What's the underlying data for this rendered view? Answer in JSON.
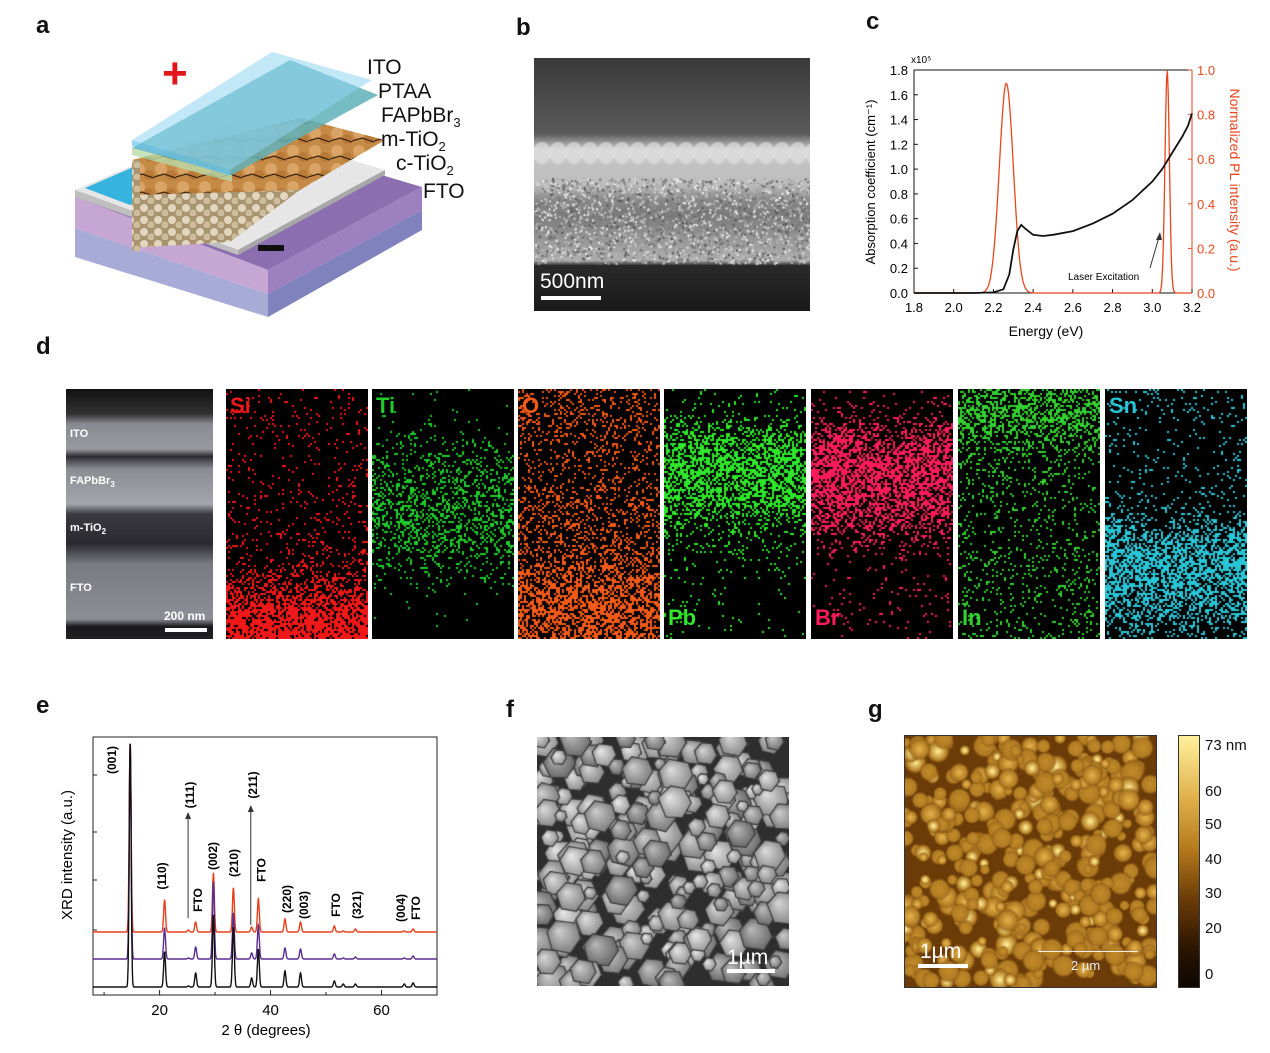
{
  "panel_labels": {
    "a": "a",
    "b": "b",
    "c": "c",
    "d": "d",
    "e": "e",
    "f": "f",
    "g": "g"
  },
  "panel_a": {
    "plus_sign": "+",
    "layers": [
      {
        "main": "ITO",
        "sub": ""
      },
      {
        "main": "PTAA",
        "sub": ""
      },
      {
        "main": "FAPbBr",
        "sub": "3"
      },
      {
        "main": "m-TiO",
        "sub": "2"
      },
      {
        "main": "c-TiO",
        "sub": "2"
      },
      {
        "main": "FTO",
        "sub": ""
      }
    ]
  },
  "panel_b": {
    "scale_bar": "500nm"
  },
  "panel_d": {
    "tem_labels": [
      {
        "main": "ITO",
        "sub": ""
      },
      {
        "main": "FAPbBr",
        "sub": "3"
      },
      {
        "main": "m-TiO",
        "sub": "2"
      },
      {
        "main": "FTO",
        "sub": ""
      }
    ],
    "scale_bar": "200 nm",
    "maps": [
      {
        "element": "Si",
        "color": "#f01818",
        "label_pos": "top",
        "density": [
          0.05,
          0.06,
          0.05,
          0.05,
          0.06,
          0.07,
          0.08,
          0.12,
          0.45,
          0.75,
          0.8
        ]
      },
      {
        "element": "Ti",
        "color": "#1fcc2a",
        "label_pos": "top",
        "density": [
          0.01,
          0.02,
          0.08,
          0.18,
          0.3,
          0.35,
          0.3,
          0.12,
          0.02,
          0.01,
          0.01
        ]
      },
      {
        "element": "O",
        "color": "#f25a18",
        "label_pos": "top",
        "density": [
          0.2,
          0.22,
          0.15,
          0.15,
          0.22,
          0.25,
          0.25,
          0.35,
          0.55,
          0.6,
          0.55
        ]
      },
      {
        "element": "Pb",
        "color": "#2ee62a",
        "label_pos": "bottom",
        "density": [
          0.02,
          0.08,
          0.45,
          0.6,
          0.55,
          0.35,
          0.1,
          0.03,
          0.02,
          0.02,
          0.02
        ]
      },
      {
        "element": "Br",
        "color": "#ff1a5c",
        "label_pos": "bottom",
        "density": [
          0.03,
          0.1,
          0.5,
          0.65,
          0.6,
          0.45,
          0.15,
          0.04,
          0.03,
          0.03,
          0.03
        ]
      },
      {
        "element": "In",
        "color": "#34d030",
        "label_pos": "bottom",
        "density": [
          0.35,
          0.55,
          0.3,
          0.12,
          0.1,
          0.1,
          0.12,
          0.12,
          0.12,
          0.12,
          0.12
        ]
      },
      {
        "element": "Sn",
        "color": "#26c6d6",
        "label_pos": "top",
        "density": [
          0.08,
          0.06,
          0.05,
          0.05,
          0.06,
          0.15,
          0.5,
          0.65,
          0.55,
          0.35,
          0.1
        ]
      }
    ]
  },
  "panel_f": {
    "scale_bar": "1µm"
  },
  "panel_g": {
    "scale_bar": "1µm",
    "scale_bar2": "2 µm",
    "colorbar": {
      "unit_max_label": "73 nm",
      "ticks": [
        "60",
        "50",
        "40",
        "30",
        "20",
        "0"
      ],
      "range_nm": [
        0,
        73
      ]
    }
  },
  "chart_data": [
    {
      "id": "c",
      "type": "line",
      "title": "",
      "xlabel": "Energy (eV)",
      "ylabel": "Absorption coefficient (cm⁻¹)",
      "ylabel_right": "Normalized PL intensity (a.u.)",
      "y_multiplier": "x10⁵",
      "xlim": [
        1.8,
        3.2
      ],
      "ylim": [
        0,
        1.8
      ],
      "ylim_right": [
        0,
        1.0
      ],
      "xticks": [
        "1.8",
        "2.0",
        "2.2",
        "2.4",
        "2.6",
        "2.8",
        "3.0",
        "3.2"
      ],
      "yticks": [
        "0.0",
        "0.2",
        "0.4",
        "0.6",
        "0.8",
        "1.0",
        "1.2",
        "1.4",
        "1.6",
        "1.8"
      ],
      "yticks_right": [
        "0.0",
        "0.2",
        "0.4",
        "0.6",
        "0.8",
        "1.0"
      ],
      "annotation": "Laser Excitation",
      "series": [
        {
          "name": "Absorption",
          "axis": "left",
          "color": "#111111",
          "x": [
            1.8,
            2.1,
            2.2,
            2.25,
            2.28,
            2.3,
            2.32,
            2.34,
            2.36,
            2.4,
            2.45,
            2.5,
            2.6,
            2.7,
            2.8,
            2.9,
            3.0,
            3.05,
            3.1,
            3.15,
            3.18,
            3.2
          ],
          "y": [
            0,
            0,
            0.005,
            0.03,
            0.15,
            0.35,
            0.5,
            0.55,
            0.52,
            0.47,
            0.46,
            0.47,
            0.5,
            0.56,
            0.64,
            0.75,
            0.9,
            1.0,
            1.13,
            1.26,
            1.35,
            1.45
          ]
        },
        {
          "name": "PL",
          "axis": "right",
          "color": "#e8461e",
          "peaks": [
            {
              "center": 2.265,
              "height": 0.94,
              "width": 0.035
            },
            {
              "center": 3.075,
              "height": 1.0,
              "width": 0.011
            }
          ]
        }
      ]
    },
    {
      "id": "e",
      "type": "line",
      "xlabel": "2 θ (degrees)",
      "ylabel": "XRD intensity (a.u.)",
      "xlim": [
        8,
        70
      ],
      "ylim": [
        0,
        258
      ],
      "xticks": [
        "20",
        "40",
        "60"
      ],
      "peak_positions": [
        14.7,
        20.9,
        25.2,
        26.5,
        29.7,
        33.3,
        36.6,
        37.8,
        42.6,
        45.4,
        51.5,
        53.1,
        55.3,
        64.1,
        65.7
      ],
      "series": [
        {
          "name": "red",
          "color": "#e8401c",
          "offset": 63,
          "heights": [
            189,
            32,
            2,
            10,
            59,
            44,
            5,
            33,
            13,
            10,
            6,
            1,
            3,
            1,
            3
          ]
        },
        {
          "name": "purple",
          "color": "#5a2d91",
          "offset": 36,
          "heights": [
            216,
            31,
            1,
            12,
            77,
            46,
            6,
            34,
            11,
            10,
            5,
            1,
            2,
            1,
            3
          ]
        },
        {
          "name": "black",
          "color": "#111111",
          "offset": 8,
          "heights": [
            244,
            35,
            1,
            14,
            72,
            60,
            9,
            38,
            16,
            14,
            6,
            3,
            3,
            3,
            4
          ]
        }
      ],
      "annotations": [
        {
          "text": "(001)",
          "x": 11.4,
          "y": 235,
          "bold": true
        },
        {
          "text": "(110)",
          "x": 20.4,
          "y": 119,
          "bold": true
        },
        {
          "text": "(111)",
          "x": 25.5,
          "y": 200,
          "bold": true,
          "arrow_from": 77,
          "arrow_to": 178
        },
        {
          "text": "FTO",
          "x": 26.9,
          "y": 95,
          "bold": true
        },
        {
          "text": "(002)",
          "x": 29.6,
          "y": 139,
          "bold": true
        },
        {
          "text": "(210)",
          "x": 33.4,
          "y": 132,
          "bold": true
        },
        {
          "text": "(211)",
          "x": 36.8,
          "y": 210,
          "bold": true,
          "arrow_from": 70,
          "arrow_to": 185
        },
        {
          "text": "FTO",
          "x": 38.4,
          "y": 125,
          "bold": true
        },
        {
          "text": "(220)",
          "x": 43.0,
          "y": 96,
          "bold": true
        },
        {
          "text": "(003)",
          "x": 46.0,
          "y": 90,
          "bold": true
        },
        {
          "text": "FTO",
          "x": 51.8,
          "y": 90,
          "bold": true
        },
        {
          "text": "(321)",
          "x": 55.6,
          "y": 90,
          "bold": true
        },
        {
          "text": "(004)",
          "x": 63.5,
          "y": 87,
          "bold": true
        },
        {
          "text": "FTO",
          "x": 66.2,
          "y": 87,
          "bold": true
        }
      ]
    }
  ]
}
